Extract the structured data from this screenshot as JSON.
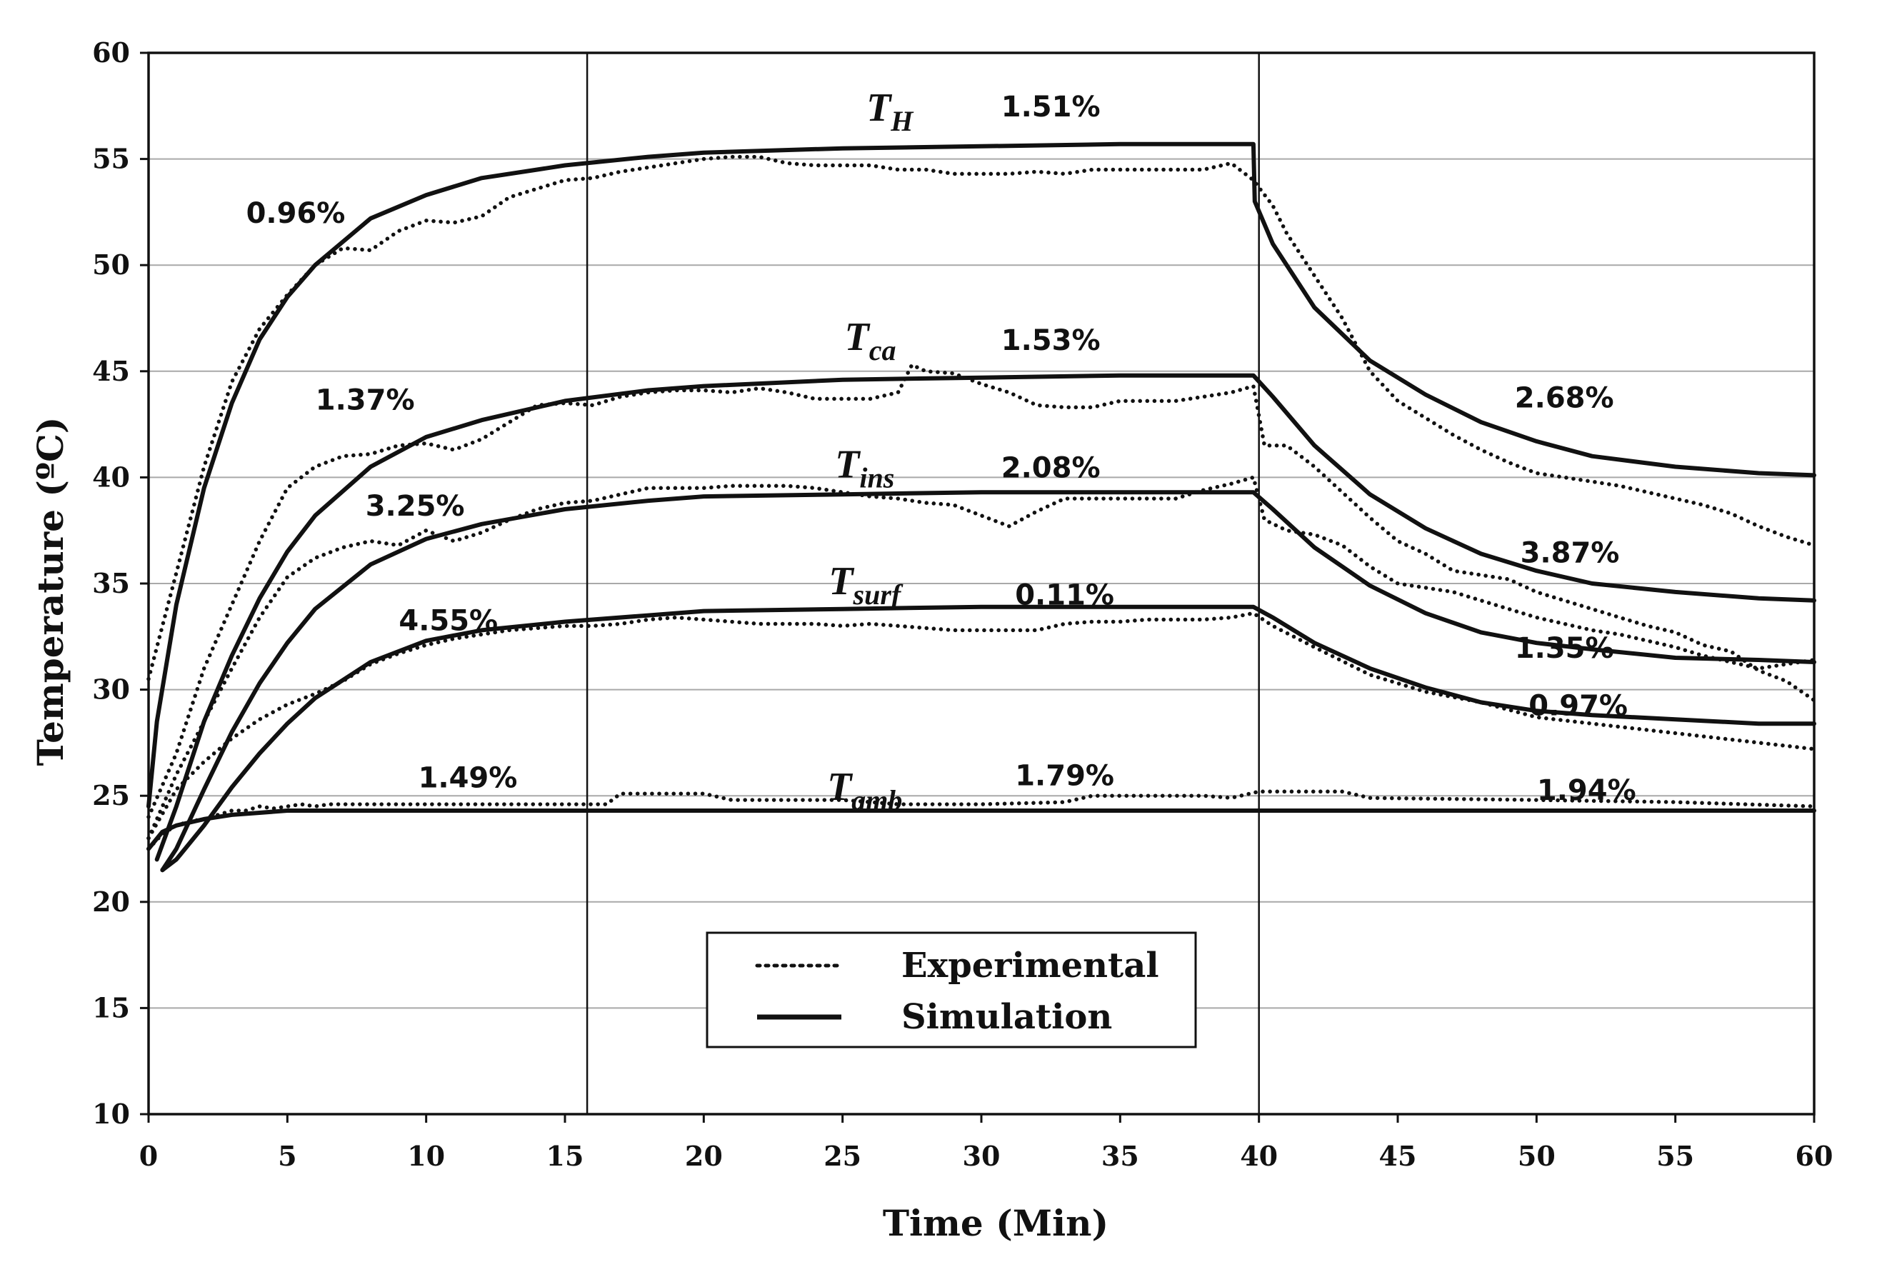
{
  "chart_data": {
    "type": "line",
    "xlabel": "Time (Min)",
    "ylabel": "Temperature (ºC)",
    "xlim": [
      0,
      60
    ],
    "ylim": [
      10,
      60
    ],
    "x_ticks": [
      "0",
      "5",
      "10",
      "15",
      "20",
      "25",
      "30",
      "35",
      "40",
      "45",
      "50",
      "55",
      "60"
    ],
    "y_ticks": [
      "10",
      "15",
      "20",
      "25",
      "30",
      "35",
      "40",
      "45",
      "50",
      "55",
      "60"
    ],
    "grid": "horizontal",
    "vertical_markers": [
      15.8,
      40
    ],
    "legend": {
      "placement": "bottom-center",
      "entries": [
        {
          "label": "Experimental",
          "style": "dotted"
        },
        {
          "label": "Simulation",
          "style": "solid"
        }
      ]
    },
    "series_labels": [
      {
        "main": "T",
        "sub": "H",
        "x": 26.7,
        "y": 56.8
      },
      {
        "main": "T",
        "sub": "ca",
        "x": 26.0,
        "y": 46.0
      },
      {
        "main": "T",
        "sub": "ins",
        "x": 25.8,
        "y": 40.0
      },
      {
        "main": "T",
        "sub": "surf",
        "x": 25.8,
        "y": 34.5
      },
      {
        "main": "T",
        "sub": "amb",
        "x": 25.8,
        "y": 24.8
      }
    ],
    "error_annotations": [
      {
        "text": "0.96%",
        "x": 5.3,
        "y": 52.0
      },
      {
        "text": "1.51%",
        "x": 32.5,
        "y": 57.0
      },
      {
        "text": "1.53%",
        "x": 32.5,
        "y": 46.0
      },
      {
        "text": "1.37%",
        "x": 7.8,
        "y": 43.2
      },
      {
        "text": "2.68%",
        "x": 51.0,
        "y": 43.3
      },
      {
        "text": "2.08%",
        "x": 32.5,
        "y": 40.0
      },
      {
        "text": "3.25%",
        "x": 9.6,
        "y": 38.2
      },
      {
        "text": "3.87%",
        "x": 51.2,
        "y": 36.0
      },
      {
        "text": "0.11%",
        "x": 33.0,
        "y": 34.0
      },
      {
        "text": "4.55%",
        "x": 10.8,
        "y": 32.8
      },
      {
        "text": "1.35%",
        "x": 51.0,
        "y": 31.5
      },
      {
        "text": "0.97%",
        "x": 51.5,
        "y": 28.8
      },
      {
        "text": "1.49%",
        "x": 11.5,
        "y": 25.4
      },
      {
        "text": "1.79%",
        "x": 33.0,
        "y": 25.5
      },
      {
        "text": "1.94%",
        "x": 51.8,
        "y": 24.8
      }
    ],
    "series": [
      {
        "id": "TH-sim",
        "style": "solid",
        "x": [
          0,
          0.3,
          1,
          2,
          3,
          4,
          5,
          6,
          8,
          10,
          12,
          14,
          15,
          18,
          20,
          25,
          30,
          35,
          39.8,
          39.85,
          40.5,
          42,
          44,
          46,
          48,
          50,
          52,
          55,
          58,
          60
        ],
        "y": [
          24.5,
          28.5,
          34,
          39.5,
          43.5,
          46.5,
          48.5,
          50,
          52.2,
          53.3,
          54.1,
          54.5,
          54.7,
          55.1,
          55.3,
          55.5,
          55.6,
          55.7,
          55.7,
          53,
          51,
          48,
          45.5,
          43.9,
          42.6,
          41.7,
          41,
          40.5,
          40.2,
          40.1
        ]
      },
      {
        "id": "TH-exp",
        "style": "dotted",
        "x": [
          0,
          0.5,
          1,
          2,
          3,
          4,
          5,
          6,
          7,
          8,
          9,
          10,
          11,
          12,
          13,
          14,
          15,
          16,
          17,
          18,
          19,
          20,
          21,
          22,
          23,
          24,
          25,
          26,
          27,
          28,
          29,
          30,
          31,
          32,
          33,
          34,
          35,
          36,
          37,
          38,
          39,
          39.8,
          40.5,
          41,
          42,
          43,
          44,
          45,
          46,
          47,
          48,
          49,
          50,
          51,
          52,
          53,
          54,
          55,
          56,
          57,
          58,
          59,
          60
        ],
        "y": [
          30.5,
          33,
          35.5,
          40.5,
          44.5,
          47,
          48.6,
          50,
          50.8,
          50.7,
          51.6,
          52.1,
          52,
          52.3,
          53.2,
          53.6,
          54,
          54.1,
          54.4,
          54.6,
          54.8,
          55,
          55.1,
          55.1,
          54.8,
          54.7,
          54.7,
          54.7,
          54.5,
          54.5,
          54.3,
          54.3,
          54.3,
          54.4,
          54.3,
          54.5,
          54.5,
          54.5,
          54.5,
          54.5,
          54.8,
          54,
          52.8,
          51.5,
          49.5,
          47.5,
          45,
          43.6,
          42.8,
          42,
          41.3,
          40.7,
          40.2,
          40,
          39.8,
          39.6,
          39.3,
          39,
          38.7,
          38.3,
          37.7,
          37.2,
          36.8
        ]
      },
      {
        "id": "Tca-sim",
        "style": "solid",
        "x": [
          0.3,
          1,
          2,
          3,
          4,
          5,
          6,
          8,
          10,
          12,
          15,
          18,
          20,
          25,
          30,
          35,
          39.8,
          40.5,
          42,
          44,
          46,
          48,
          50,
          52,
          55,
          58,
          60
        ],
        "y": [
          22,
          24.5,
          28.5,
          31.6,
          34.3,
          36.5,
          38.2,
          40.5,
          41.9,
          42.7,
          43.6,
          44.1,
          44.3,
          44.6,
          44.7,
          44.8,
          44.8,
          43.8,
          41.5,
          39.2,
          37.6,
          36.4,
          35.6,
          35,
          34.6,
          34.3,
          34.2
        ]
      },
      {
        "id": "Tca-exp",
        "style": "dotted",
        "x": [
          0,
          1,
          2,
          3,
          4,
          5,
          6,
          7,
          8,
          9,
          10,
          11,
          12,
          13,
          14,
          15,
          16,
          17,
          18,
          19,
          20,
          21,
          22,
          23,
          24,
          25,
          26,
          27,
          27.5,
          28,
          29,
          30,
          31,
          32,
          33,
          34,
          35,
          36,
          37,
          38,
          39,
          39.8,
          40.2,
          41,
          42,
          43,
          44,
          45,
          46,
          47,
          48,
          49,
          50,
          51,
          52,
          53,
          54,
          55,
          56,
          57,
          58,
          59,
          60
        ],
        "y": [
          24,
          27,
          31,
          34,
          37,
          39.5,
          40.5,
          41,
          41.1,
          41.5,
          41.6,
          41.3,
          41.8,
          42.6,
          43.4,
          43.5,
          43.4,
          43.8,
          44,
          44.1,
          44.1,
          44,
          44.2,
          44,
          43.7,
          43.7,
          43.7,
          44,
          45.3,
          45,
          44.9,
          44.4,
          44,
          43.4,
          43.3,
          43.3,
          43.6,
          43.6,
          43.6,
          43.8,
          44,
          44.3,
          41.5,
          41.5,
          40.5,
          39.3,
          38.1,
          37,
          36.4,
          35.6,
          35.4,
          35.2,
          34.6,
          34.2,
          33.8,
          33.4,
          33,
          32.7,
          32.1,
          31.8,
          30.9,
          30.4,
          29.5
        ]
      },
      {
        "id": "Tins-sim",
        "style": "solid",
        "x": [
          0.5,
          1,
          2,
          3,
          4,
          5,
          6,
          8,
          10,
          12,
          15,
          18,
          20,
          25,
          30,
          35,
          39.8,
          40.5,
          42,
          44,
          46,
          48,
          50,
          52,
          55,
          58,
          60
        ],
        "y": [
          21.5,
          22.5,
          25.3,
          28,
          30.3,
          32.2,
          33.8,
          35.9,
          37.1,
          37.8,
          38.5,
          38.9,
          39.1,
          39.2,
          39.3,
          39.3,
          39.3,
          38.5,
          36.7,
          34.9,
          33.6,
          32.7,
          32.2,
          31.9,
          31.5,
          31.4,
          31.3
        ]
      },
      {
        "id": "Tins-exp",
        "style": "dotted",
        "x": [
          0,
          1,
          2,
          3,
          4,
          5,
          6,
          7,
          8,
          9,
          10,
          11,
          12,
          13,
          14,
          15,
          16,
          17,
          18,
          19,
          20,
          21,
          22,
          23,
          24,
          25,
          26,
          27,
          28,
          29,
          30,
          31,
          32,
          33,
          34,
          35,
          36,
          37,
          38,
          39,
          39.8,
          40.2,
          41,
          42,
          43,
          44,
          45,
          46,
          47,
          48,
          49,
          50,
          51,
          52,
          53,
          54,
          55,
          56,
          57,
          58,
          59,
          60
        ],
        "y": [
          23,
          26,
          28.5,
          31,
          33.4,
          35.3,
          36.2,
          36.7,
          37,
          36.8,
          37.5,
          37,
          37.4,
          38,
          38.5,
          38.8,
          38.9,
          39.2,
          39.5,
          39.5,
          39.5,
          39.6,
          39.6,
          39.6,
          39.5,
          39.3,
          39.1,
          39,
          38.8,
          38.7,
          38.2,
          37.7,
          38.4,
          39,
          39,
          39,
          39,
          39,
          39.4,
          39.7,
          40,
          38,
          37.5,
          37.3,
          36.8,
          35.8,
          35,
          34.8,
          34.6,
          34.2,
          33.8,
          33.4,
          33.1,
          32.8,
          32.6,
          32.3,
          32,
          31.6,
          31.3,
          31,
          31.2,
          31.4
        ]
      },
      {
        "id": "Tsurf-sim",
        "style": "solid",
        "x": [
          0.5,
          1,
          2,
          3,
          4,
          5,
          6,
          8,
          10,
          12,
          15,
          18,
          20,
          25,
          30,
          35,
          39.8,
          40.5,
          42,
          44,
          46,
          48,
          50,
          52,
          55,
          58,
          60
        ],
        "y": [
          21.5,
          22,
          23.6,
          25.4,
          27,
          28.4,
          29.6,
          31.3,
          32.3,
          32.8,
          33.2,
          33.5,
          33.7,
          33.8,
          33.9,
          33.9,
          33.9,
          33.4,
          32.2,
          31,
          30.1,
          29.4,
          29,
          28.8,
          28.6,
          28.4,
          28.4
        ]
      },
      {
        "id": "Tsurf-exp",
        "style": "dotted",
        "x": [
          0,
          1,
          2,
          3,
          4,
          5,
          6,
          7,
          8,
          9,
          10,
          11,
          12,
          13,
          14,
          15,
          16,
          17,
          18,
          19,
          20,
          21,
          22,
          23,
          24,
          25,
          26,
          27,
          28,
          29,
          30,
          31,
          32,
          33,
          34,
          35,
          36,
          37,
          38,
          39,
          39.8,
          40.5,
          42,
          44,
          46,
          48,
          50,
          52,
          54,
          56,
          58,
          60
        ],
        "y": [
          23,
          25.3,
          26.6,
          27.7,
          28.6,
          29.3,
          29.8,
          30.4,
          31.2,
          31.7,
          32.1,
          32.4,
          32.6,
          32.8,
          32.9,
          33,
          33,
          33.1,
          33.3,
          33.4,
          33.3,
          33.2,
          33.1,
          33.1,
          33.1,
          33,
          33.1,
          33,
          32.9,
          32.8,
          32.8,
          32.8,
          32.8,
          33.1,
          33.2,
          33.2,
          33.3,
          33.3,
          33.3,
          33.4,
          33.6,
          33,
          32,
          30.7,
          29.9,
          29.4,
          28.7,
          28.4,
          28.1,
          27.8,
          27.5,
          27.2
        ]
      },
      {
        "id": "Tamb-sim",
        "style": "solid",
        "x": [
          0,
          0.5,
          1,
          2,
          3,
          4,
          5,
          6,
          10,
          20,
          30,
          40,
          50,
          60
        ],
        "y": [
          22.5,
          23.3,
          23.6,
          23.9,
          24.1,
          24.2,
          24.3,
          24.3,
          24.3,
          24.3,
          24.3,
          24.3,
          24.3,
          24.3
        ]
      },
      {
        "id": "Tamb-exp",
        "style": "dotted",
        "x": [
          0,
          0.5,
          1,
          1.5,
          2,
          2.5,
          3,
          3.5,
          4,
          4.5,
          5,
          5.5,
          6,
          6.5,
          10,
          15,
          16.5,
          17,
          20,
          21,
          22,
          25,
          27,
          30,
          33,
          34,
          38,
          39,
          40,
          43,
          44,
          50,
          55,
          60
        ],
        "y": [
          22.5,
          23.2,
          23.6,
          23.8,
          23.9,
          24.1,
          24.3,
          24.3,
          24.5,
          24.4,
          24.5,
          24.6,
          24.5,
          24.6,
          24.6,
          24.6,
          24.6,
          25.1,
          25.1,
          24.8,
          24.8,
          24.8,
          24.6,
          24.6,
          24.7,
          25.0,
          25.0,
          24.9,
          25.2,
          25.2,
          24.9,
          24.8,
          24.7,
          24.5
        ]
      }
    ]
  }
}
